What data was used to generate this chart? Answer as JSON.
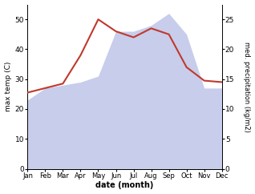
{
  "months": [
    "Jan",
    "Feb",
    "Mar",
    "Apr",
    "May",
    "Jun",
    "Jul",
    "Aug",
    "Sep",
    "Oct",
    "Nov",
    "Dec"
  ],
  "x": [
    0,
    1,
    2,
    3,
    4,
    5,
    6,
    7,
    8,
    9,
    10,
    11
  ],
  "temp": [
    25.5,
    27.0,
    28.5,
    38.0,
    50.0,
    46.0,
    44.0,
    47.0,
    45.0,
    34.0,
    29.5,
    29.0
  ],
  "precip": [
    11.5,
    13.5,
    14.0,
    14.5,
    15.5,
    23.0,
    23.0,
    24.0,
    26.0,
    22.5,
    13.5,
    13.5
  ],
  "temp_color": "#c0392b",
  "precip_fill": "#bdc5e8",
  "ylabel_left": "max temp (C)",
  "ylabel_right": "med. precipitation (kg/m2)",
  "xlabel": "date (month)",
  "ylim_left": [
    0,
    55
  ],
  "ylim_right": [
    0,
    27.5
  ],
  "yticks_left": [
    0,
    10,
    20,
    30,
    40,
    50
  ],
  "yticks_right": [
    0,
    5,
    10,
    15,
    20,
    25
  ],
  "bg_color": "#ffffff"
}
